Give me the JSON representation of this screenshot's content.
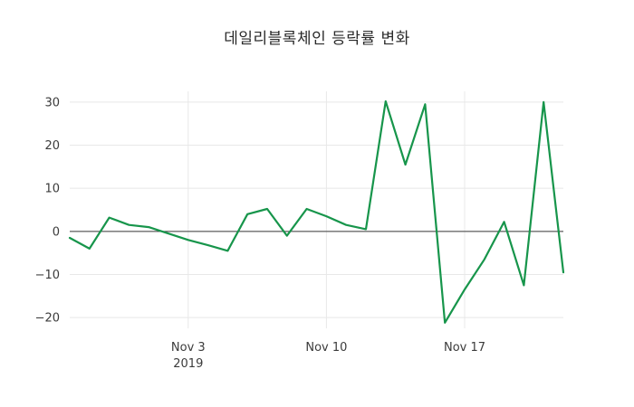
{
  "title": "데일리블록체인 등락률 변화",
  "chart_data": {
    "type": "line",
    "title": "데일리블록체인 등락률 변화",
    "xlabel": "",
    "ylabel": "",
    "line_color": "#17954b",
    "grid_color": "#e8e8e8",
    "zeroline_color": "#3a3a3a",
    "ylim": [
      -22.5,
      32.5
    ],
    "yticks": [
      30,
      20,
      10,
      0,
      -10,
      -20
    ],
    "ytick_labels": [
      "30",
      "20",
      "10",
      "0",
      "−10",
      "−20"
    ],
    "x": [
      "Oct 28",
      "Oct 29",
      "Oct 30",
      "Oct 31",
      "Nov 1",
      "Nov 2",
      "Nov 3",
      "Nov 4",
      "Nov 5",
      "Nov 6",
      "Nov 7",
      "Nov 8",
      "Nov 9",
      "Nov 10",
      "Nov 11",
      "Nov 12",
      "Nov 13",
      "Nov 14",
      "Nov 15",
      "Nov 16",
      "Nov 17",
      "Nov 18",
      "Nov 19",
      "Nov 20",
      "Nov 21",
      "Nov 22"
    ],
    "values": [
      -1.5,
      -4,
      3.2,
      1.5,
      1.0,
      -0.5,
      -2.0,
      -3.2,
      -4.5,
      4.0,
      5.2,
      -1.0,
      5.2,
      3.5,
      1.5,
      0.5,
      30.2,
      15.5,
      29.5,
      -21.2,
      -13.5,
      -6.5,
      2.2,
      -12.5,
      30.0,
      -9.5
    ],
    "xticks": [
      {
        "index": 6,
        "label": "Nov 3",
        "sublabel": "2019"
      },
      {
        "index": 13,
        "label": "Nov 10",
        "sublabel": ""
      },
      {
        "index": 20,
        "label": "Nov 17",
        "sublabel": ""
      }
    ],
    "grid": true,
    "zeroline": true,
    "legend": "none",
    "series_name": "등락률"
  }
}
